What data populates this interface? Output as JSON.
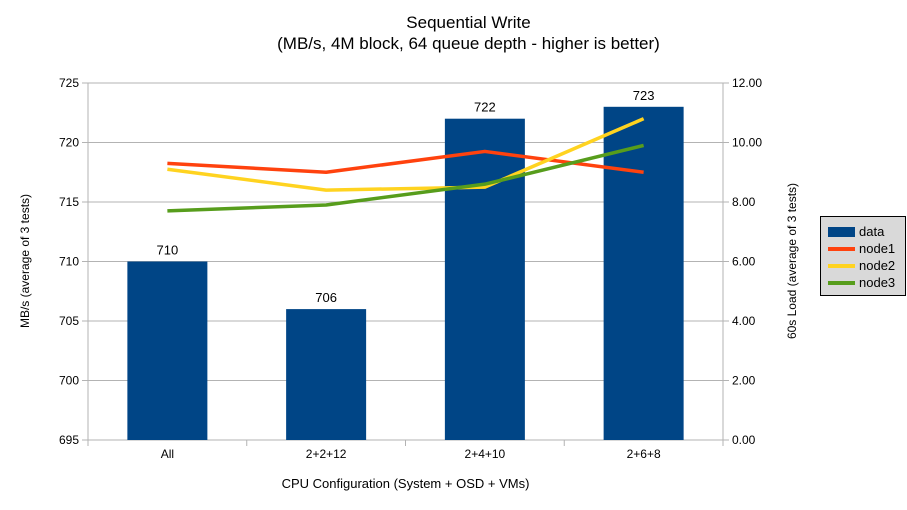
{
  "chart_data": {
    "type": "bar+line combo",
    "title": "Sequential Write",
    "subtitle": "(MB/s, 4M block, 64 queue depth - higher is better)",
    "categories": [
      "All",
      "2+2+12",
      "2+4+10",
      "2+6+8"
    ],
    "bar_series": {
      "name": "data",
      "axis": "left",
      "values": [
        710,
        706,
        722,
        723
      ],
      "data_labels": [
        "710",
        "706",
        "722",
        "723"
      ],
      "color": "#004586"
    },
    "line_series": [
      {
        "name": "node1",
        "axis": "right",
        "values": [
          9.3,
          9.0,
          9.7,
          9.0
        ],
        "color": "#ff420e"
      },
      {
        "name": "node2",
        "axis": "right",
        "values": [
          9.1,
          8.4,
          8.5,
          10.8
        ],
        "color": "#ffd320"
      },
      {
        "name": "node3",
        "axis": "right",
        "values": [
          7.7,
          7.9,
          8.6,
          9.9
        ],
        "color": "#579d1c"
      }
    ],
    "left_axis": {
      "label": "MB/s (average of 3 tests)",
      "min": 695,
      "max": 725,
      "step": 5,
      "tick_labels": [
        "695",
        "700",
        "705",
        "710",
        "715",
        "720",
        "725"
      ]
    },
    "right_axis": {
      "label": "60s Load (average of 3 tests)",
      "min": 0,
      "max": 12,
      "step": 2,
      "tick_labels": [
        "0.00",
        "2.00",
        "4.00",
        "6.00",
        "8.00",
        "10.00",
        "12.00"
      ]
    },
    "x_axis": {
      "label": "CPU Configuration (System + OSD + VMs)"
    },
    "legend": {
      "position": "right",
      "items": [
        "data",
        "node1",
        "node2",
        "node3"
      ]
    },
    "grid": true,
    "colors": {
      "background": "#ffffff",
      "gridline": "#b3b3b3",
      "axis_line": "#b3b3b3",
      "text": "#000000",
      "legend_bg": "#d9d9d9",
      "legend_border": "#000000"
    }
  }
}
